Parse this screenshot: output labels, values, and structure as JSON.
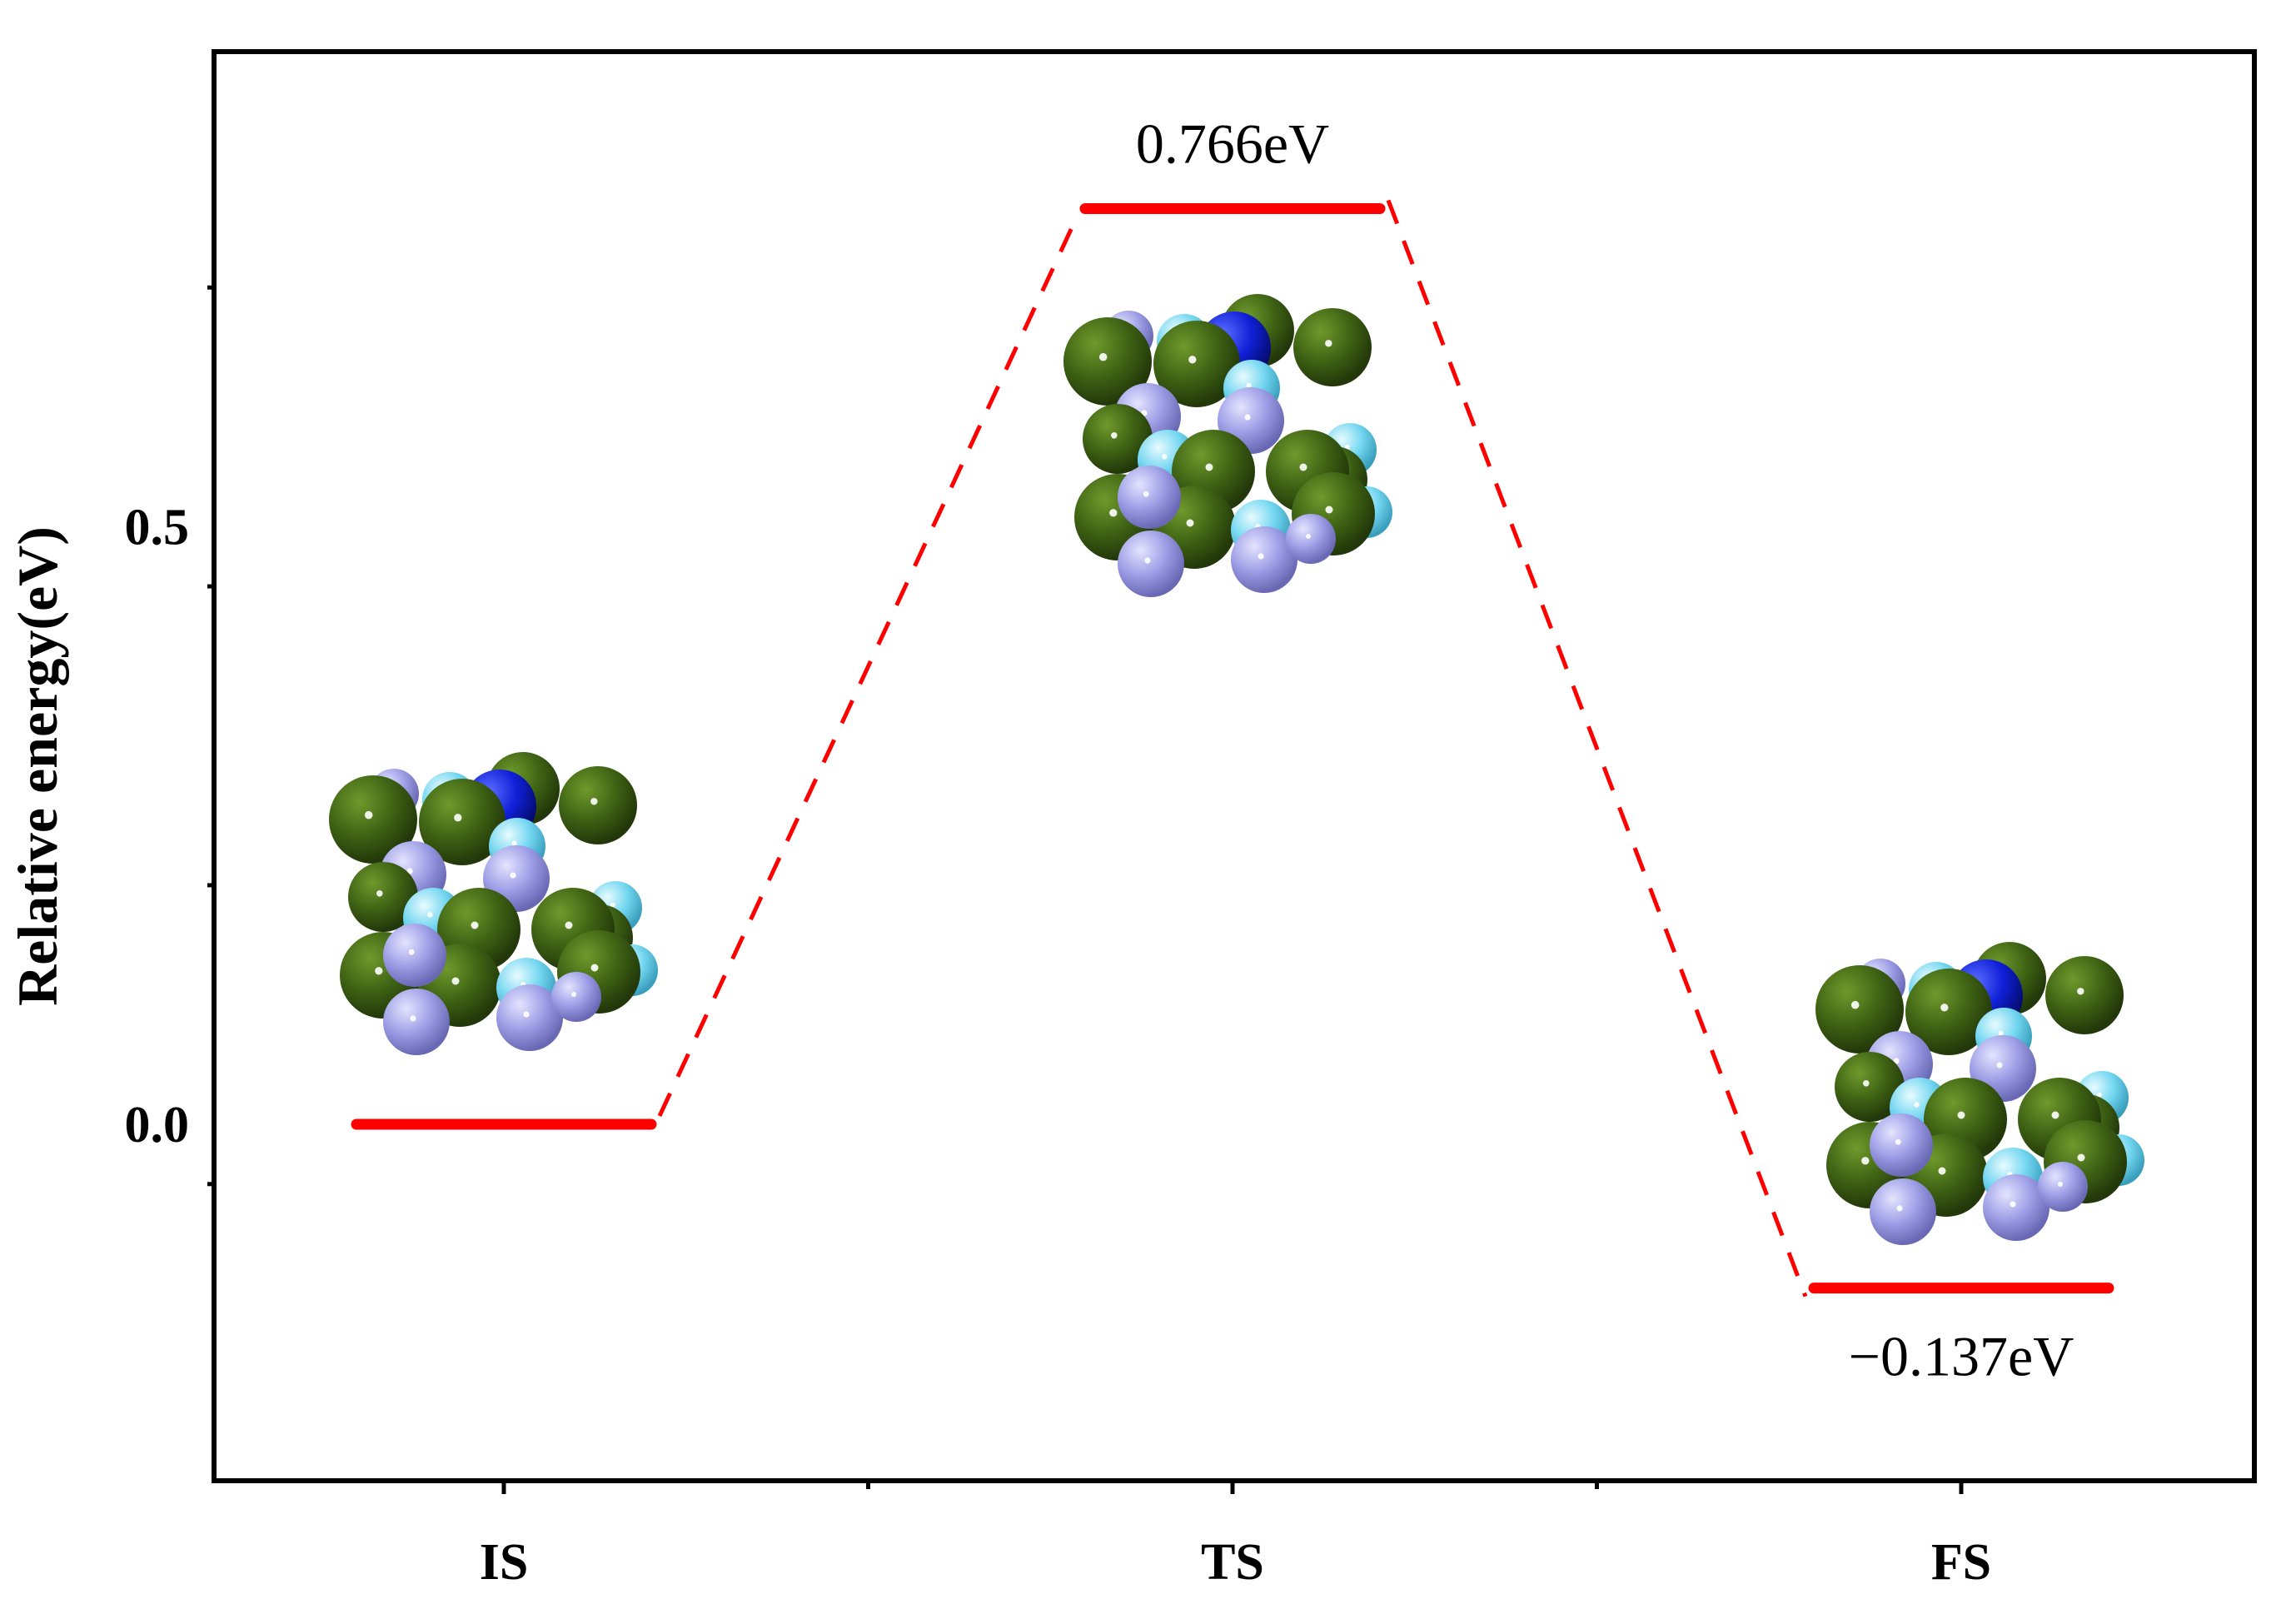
{
  "chart_data": {
    "type": "line",
    "title": "",
    "xlabel": "",
    "ylabel": "Relative energy(eV)",
    "categories": [
      "IS",
      "TS",
      "FS"
    ],
    "values": [
      0.0,
      0.766,
      -0.137
    ],
    "value_labels": [
      "",
      "0.766eV",
      "−0.137eV"
    ],
    "yticks": [
      0.0,
      0.5
    ],
    "ytick_labels": [
      "0.0",
      "0.5"
    ],
    "ylim": [
      -0.3,
      0.9
    ],
    "grid": false,
    "legend": "none",
    "colors": {
      "level": "#ff0000",
      "connector": "#ff0000",
      "axis": "#000000"
    },
    "insets": [
      {
        "state": "IS",
        "dark_atom": true
      },
      {
        "state": "TS",
        "dark_atom": true
      },
      {
        "state": "FS",
        "dark_atom": true
      }
    ],
    "atom_colors": {
      "green": "#3d5f12",
      "lavender": "#9a9ae4",
      "cyan": "#6fd6ef",
      "blue": "#0b1fd6"
    }
  }
}
